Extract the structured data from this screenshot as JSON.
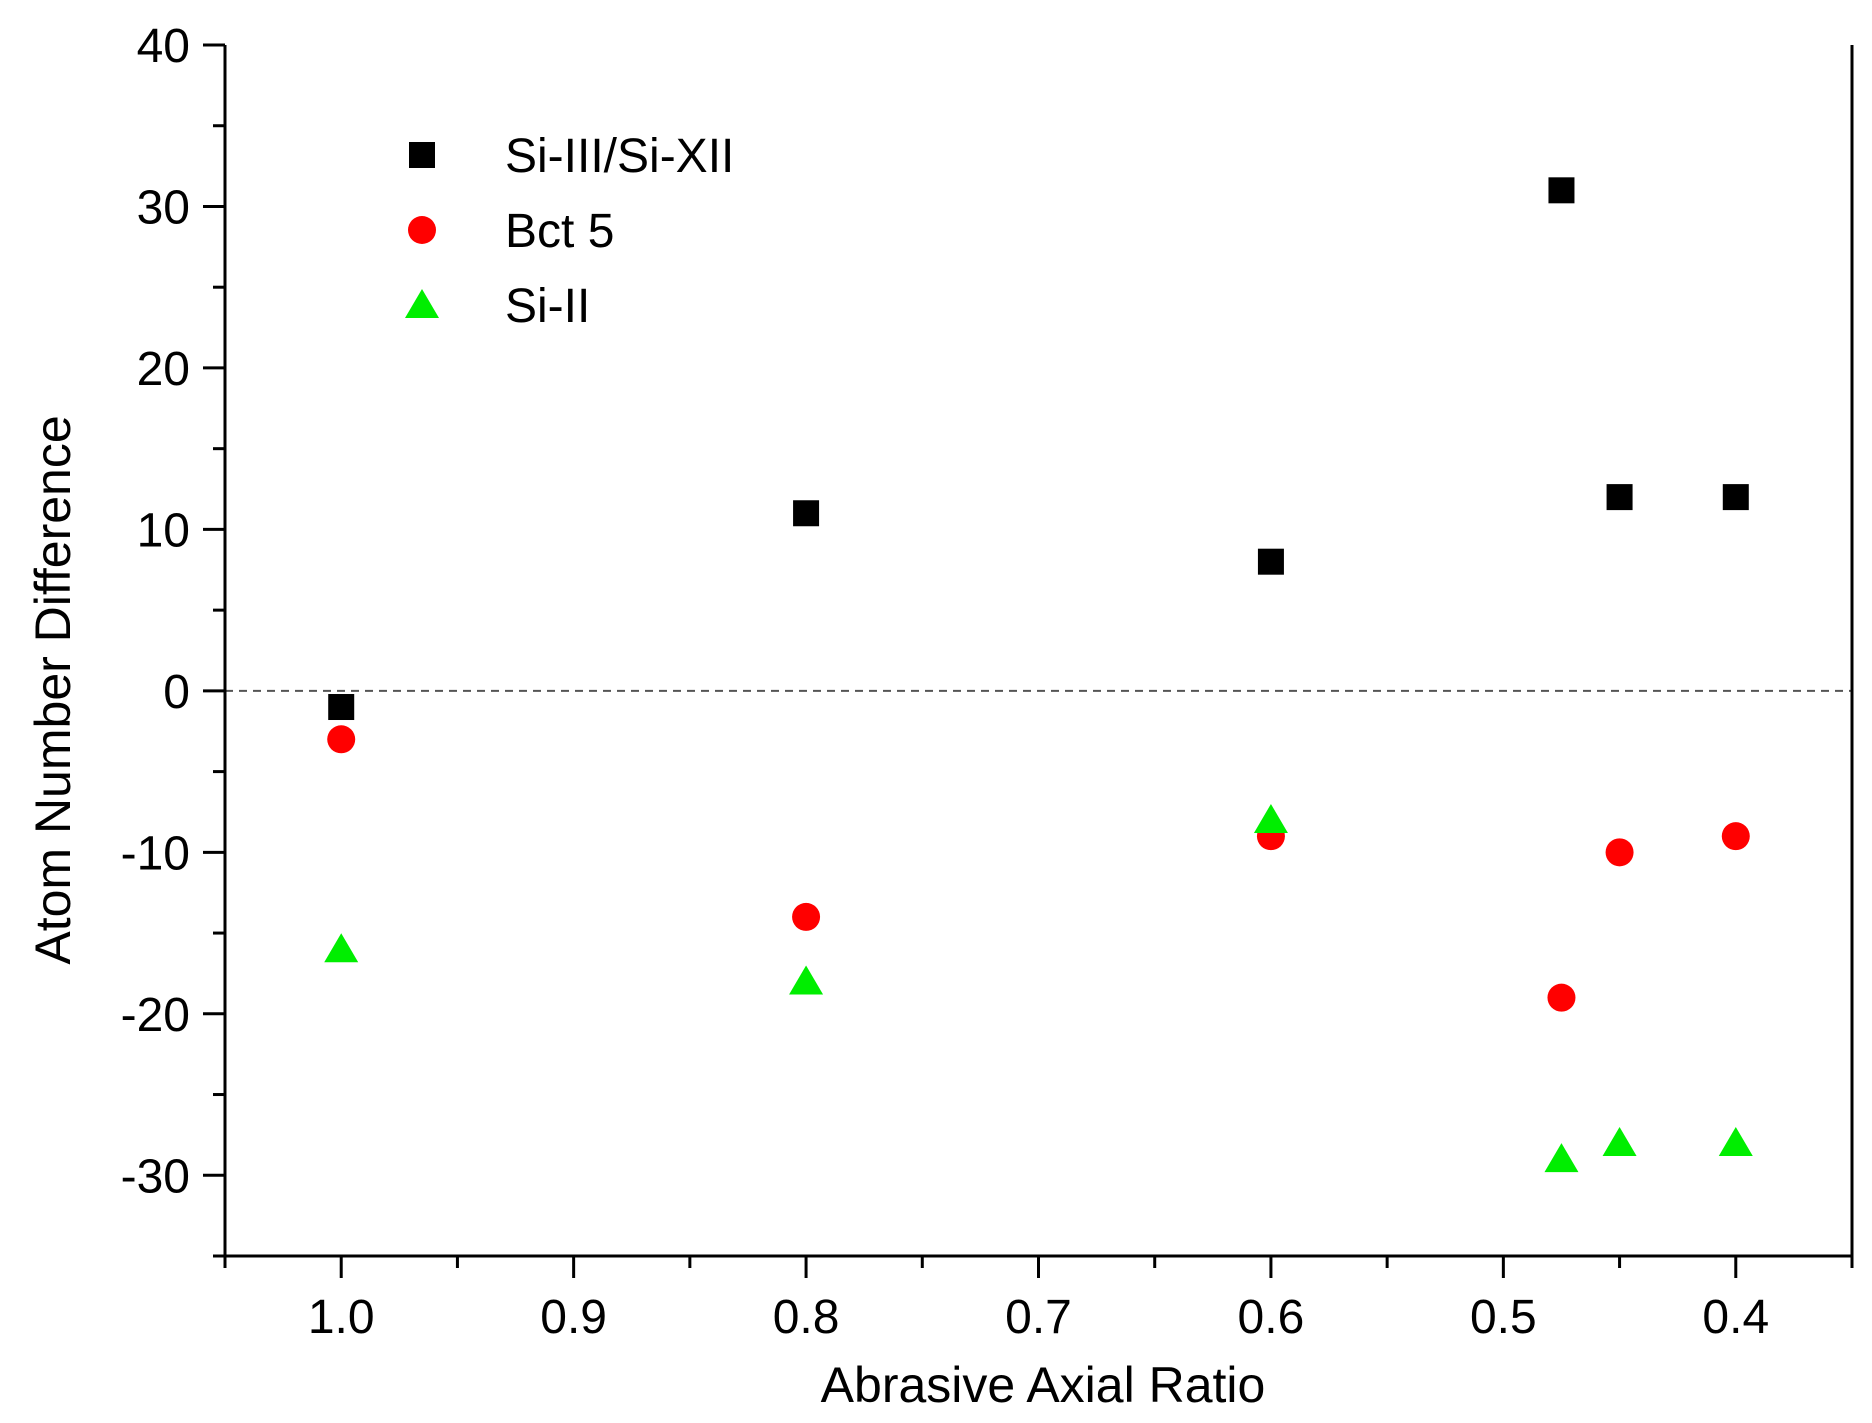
{
  "chart_data": {
    "type": "scatter",
    "title": "",
    "xlabel": "Abrasive Axial Ratio",
    "ylabel": "Atom Number Difference",
    "xlim": [
      1.05,
      0.35
    ],
    "ylim": [
      -35,
      40
    ],
    "x_reversed": true,
    "x_ticks": [
      1.0,
      0.9,
      0.8,
      0.7,
      0.6,
      0.5,
      0.4
    ],
    "x_tick_labels": [
      "1.0",
      "0.9",
      "0.8",
      "0.7",
      "0.6",
      "0.5",
      "0.4"
    ],
    "y_ticks": [
      40,
      30,
      20,
      10,
      0,
      -10,
      -20,
      -30
    ],
    "y_tick_labels": [
      "40",
      "30",
      "20",
      "10",
      "0",
      "-10",
      "-20",
      "-30"
    ],
    "reference_line": {
      "y": 0,
      "style": "dashed",
      "color": "#555555"
    },
    "legend_position": "top-left",
    "series": [
      {
        "name": "Si-III/Si-XII",
        "marker": "square",
        "color": "#000000",
        "points": [
          {
            "x": 1.0,
            "y": -1
          },
          {
            "x": 0.8,
            "y": 11
          },
          {
            "x": 0.6,
            "y": 8
          },
          {
            "x": 0.475,
            "y": 31
          },
          {
            "x": 0.45,
            "y": 12
          },
          {
            "x": 0.4,
            "y": 12
          }
        ]
      },
      {
        "name": "Bct 5",
        "marker": "circle",
        "color": "#ff0000",
        "points": [
          {
            "x": 1.0,
            "y": -3
          },
          {
            "x": 0.8,
            "y": -14
          },
          {
            "x": 0.6,
            "y": -9
          },
          {
            "x": 0.475,
            "y": -19
          },
          {
            "x": 0.45,
            "y": -10
          },
          {
            "x": 0.4,
            "y": -9
          }
        ]
      },
      {
        "name": "Si-II",
        "marker": "triangle",
        "color": "#00ee00",
        "points": [
          {
            "x": 1.0,
            "y": -16
          },
          {
            "x": 0.8,
            "y": -18
          },
          {
            "x": 0.6,
            "y": -8
          },
          {
            "x": 0.475,
            "y": -29
          },
          {
            "x": 0.45,
            "y": -28
          },
          {
            "x": 0.4,
            "y": -28
          }
        ]
      }
    ]
  }
}
